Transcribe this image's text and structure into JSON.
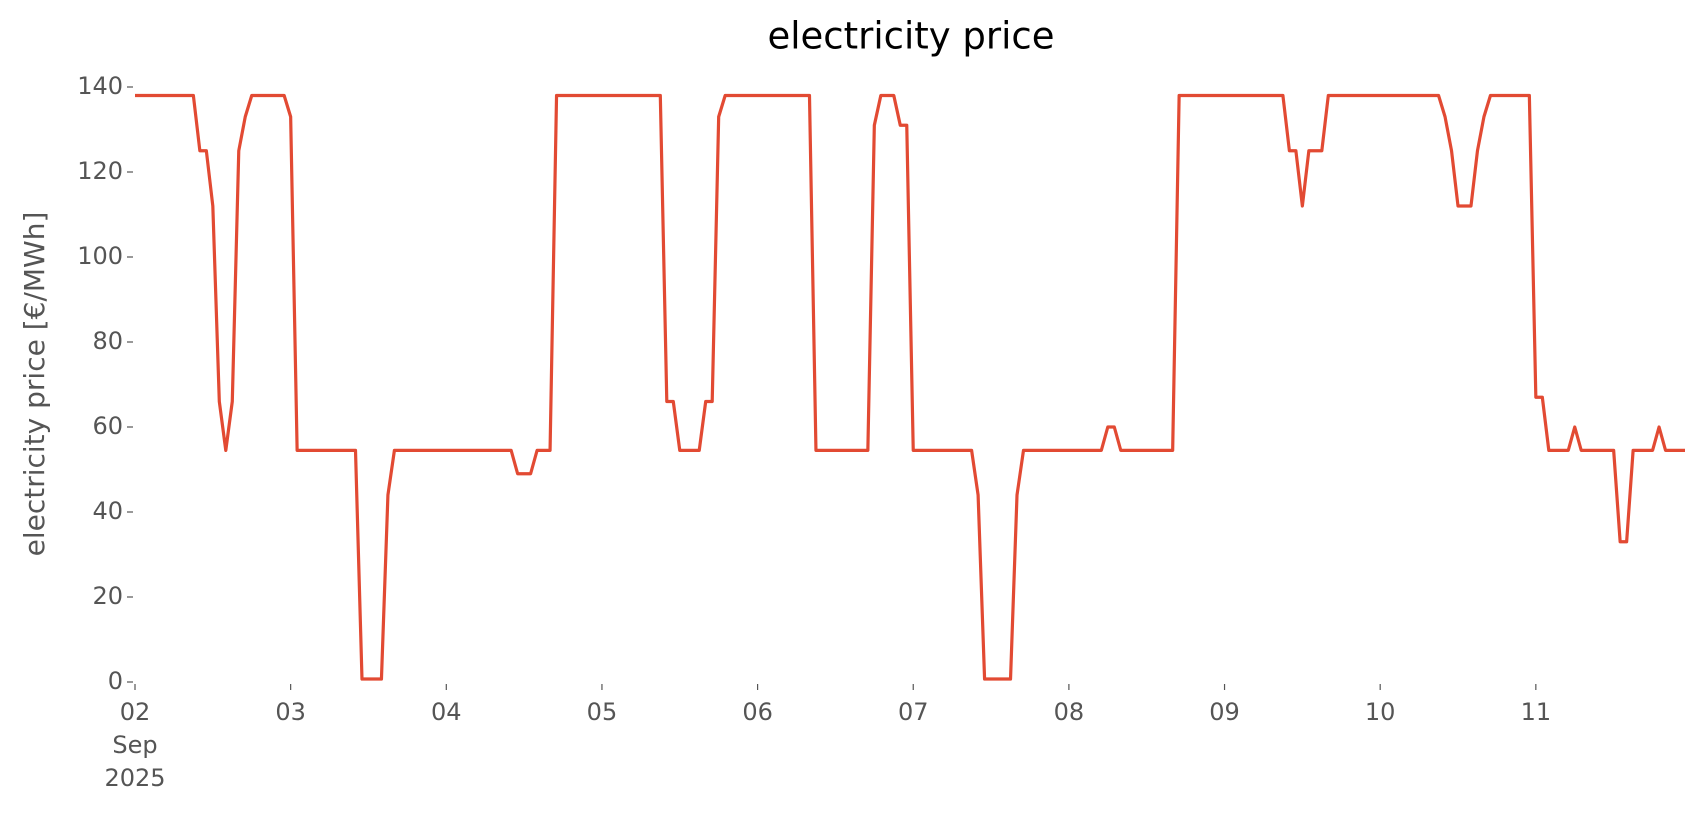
{
  "chart_data": {
    "type": "line",
    "title": "electricity price",
    "y_label": "electricity price [€/MWh]",
    "xlim": [
      "2025-09-02 00:00",
      "2025-09-11 23:00"
    ],
    "xticks": [
      {
        "value": "2025-09-02 00:00",
        "label": "02\nSep\n2025"
      },
      {
        "value": "2025-09-03 00:00",
        "label": "03"
      },
      {
        "value": "2025-09-04 00:00",
        "label": "04"
      },
      {
        "value": "2025-09-05 00:00",
        "label": "05"
      },
      {
        "value": "2025-09-06 00:00",
        "label": "06"
      },
      {
        "value": "2025-09-07 00:00",
        "label": "07"
      },
      {
        "value": "2025-09-08 00:00",
        "label": "08"
      },
      {
        "value": "2025-09-09 00:00",
        "label": "09"
      },
      {
        "value": "2025-09-10 00:00",
        "label": "10"
      },
      {
        "value": "2025-09-11 00:00",
        "label": "11"
      }
    ],
    "ylim": [
      0,
      140
    ],
    "yticks": [
      0,
      20,
      40,
      60,
      80,
      100,
      120,
      140
    ],
    "grid": false,
    "color": "#E24A33",
    "x": [
      "2025-09-02 00:00",
      "2025-09-02 09:00",
      "2025-09-02 10:00",
      "2025-09-02 11:00",
      "2025-09-02 12:00",
      "2025-09-02 13:00",
      "2025-09-02 14:00",
      "2025-09-02 15:00",
      "2025-09-02 16:00",
      "2025-09-02 17:00",
      "2025-09-02 18:00",
      "2025-09-02 23:00",
      "2025-09-03 00:00",
      "2025-09-03 01:00",
      "2025-09-03 10:00",
      "2025-09-03 11:00",
      "2025-09-03 14:00",
      "2025-09-03 15:00",
      "2025-09-03 16:00",
      "2025-09-04 10:00",
      "2025-09-04 11:00",
      "2025-09-04 13:00",
      "2025-09-04 14:00",
      "2025-09-04 16:00",
      "2025-09-04 17:00",
      "2025-09-05 09:00",
      "2025-09-05 10:00",
      "2025-09-05 11:00",
      "2025-09-05 12:00",
      "2025-09-05 15:00",
      "2025-09-05 16:00",
      "2025-09-05 17:00",
      "2025-09-05 18:00",
      "2025-09-05 19:00",
      "2025-09-06 08:00",
      "2025-09-06 09:00",
      "2025-09-06 17:00",
      "2025-09-06 18:00",
      "2025-09-06 19:00",
      "2025-09-06 21:00",
      "2025-09-06 22:00",
      "2025-09-06 23:00",
      "2025-09-07 00:00",
      "2025-09-07 09:00",
      "2025-09-07 10:00",
      "2025-09-07 11:00",
      "2025-09-07 15:00",
      "2025-09-07 16:00",
      "2025-09-07 17:00",
      "2025-09-08 05:00",
      "2025-09-08 06:00",
      "2025-09-08 07:00",
      "2025-09-08 08:00",
      "2025-09-08 16:00",
      "2025-09-08 17:00",
      "2025-09-09 09:00",
      "2025-09-09 10:00",
      "2025-09-09 11:00",
      "2025-09-09 12:00",
      "2025-09-09 13:00",
      "2025-09-09 15:00",
      "2025-09-09 16:00",
      "2025-09-10 09:00",
      "2025-09-10 10:00",
      "2025-09-10 11:00",
      "2025-09-10 12:00",
      "2025-09-10 14:00",
      "2025-09-10 15:00",
      "2025-09-10 16:00",
      "2025-09-10 17:00",
      "2025-09-10 23:00",
      "2025-09-11 00:00",
      "2025-09-11 01:00",
      "2025-09-11 02:00",
      "2025-09-11 05:00",
      "2025-09-11 06:00",
      "2025-09-11 07:00",
      "2025-09-11 12:00",
      "2025-09-11 13:00",
      "2025-09-11 14:00",
      "2025-09-11 15:00",
      "2025-09-11 18:00",
      "2025-09-11 19:00",
      "2025-09-11 20:00",
      "2025-09-11 23:00"
    ],
    "values": [
      138,
      138,
      125,
      125,
      112,
      66,
      54.5,
      66,
      125,
      133,
      138,
      138,
      133,
      54.5,
      54.5,
      0.7,
      0.7,
      44,
      54.5,
      54.5,
      49,
      49,
      54.5,
      54.5,
      138,
      138,
      66,
      66,
      54.5,
      54.5,
      66,
      66,
      133,
      138,
      138,
      54.5,
      54.5,
      131,
      138,
      138,
      131,
      131,
      54.5,
      54.5,
      44,
      0.7,
      0.7,
      44,
      54.5,
      54.5,
      60,
      60,
      54.5,
      54.5,
      138,
      138,
      125,
      125,
      112,
      125,
      125,
      138,
      138,
      133,
      125,
      112,
      112,
      125,
      133,
      138,
      138,
      67,
      67,
      54.5,
      54.5,
      60,
      54.5,
      54.5,
      33,
      33,
      54.5,
      54.5,
      60,
      54.5,
      54.5
    ]
  }
}
